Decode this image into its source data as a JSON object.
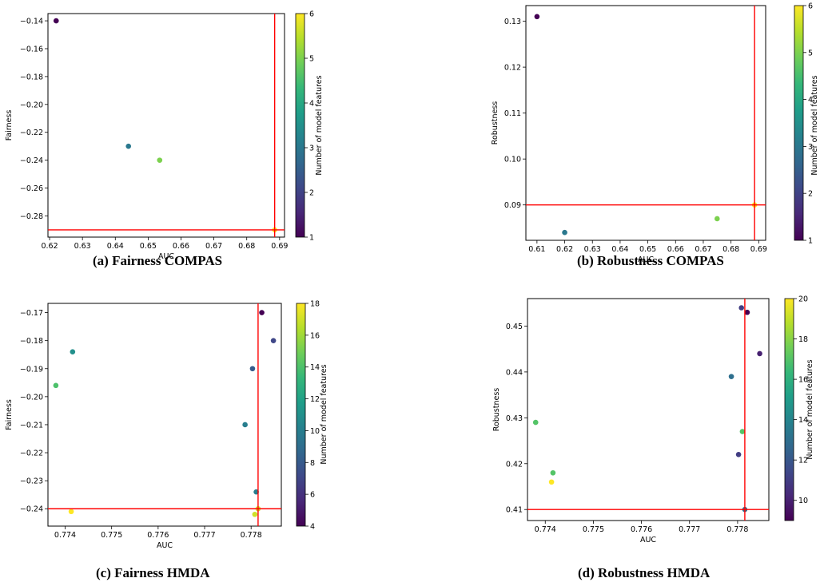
{
  "captions": [
    "(a) Fairness COMPAS",
    "(b) Robustness COMPAS",
    "(c) Fairness HMDA",
    "(d) Robustness HMDA"
  ],
  "colormap": "viridis",
  "threshold_color": "#ff0000",
  "chart_data": [
    {
      "type": "scatter",
      "title": "",
      "xlabel": "AUC",
      "ylabel": "Fairness",
      "colorbar_label": "Number of model features",
      "xlim": [
        0.6195,
        0.6915
      ],
      "ylim": [
        -0.2952,
        -0.1348
      ],
      "xticks": [
        0.62,
        0.63,
        0.64,
        0.65,
        0.66,
        0.67,
        0.68,
        0.69
      ],
      "xtick_labels": [
        "0.62",
        "0.63",
        "0.64",
        "0.65",
        "0.66",
        "0.67",
        "0.68",
        "0.69"
      ],
      "yticks": [
        -0.14,
        -0.16,
        -0.18,
        -0.2,
        -0.22,
        -0.24,
        -0.26,
        -0.28
      ],
      "ytick_labels": [
        "−0.14",
        "−0.16",
        "−0.18",
        "−0.20",
        "−0.22",
        "−0.24",
        "−0.26",
        "−0.28"
      ],
      "clim": [
        1,
        6
      ],
      "cticks": [
        1,
        2,
        3,
        4,
        5,
        6
      ],
      "points": [
        {
          "x": 0.622,
          "y": -0.14,
          "c": 1
        },
        {
          "x": 0.644,
          "y": -0.23,
          "c": 3
        },
        {
          "x": 0.6535,
          "y": -0.24,
          "c": 5
        },
        {
          "x": 0.6885,
          "y": -0.29,
          "c": 6
        }
      ],
      "vline": 0.6885,
      "hline": -0.29,
      "grid": false
    },
    {
      "type": "scatter",
      "title": "",
      "xlabel": "AUC",
      "ylabel": "Robustness",
      "colorbar_label": "Number of model features",
      "xlim": [
        0.606,
        0.6925
      ],
      "ylim": [
        0.0823,
        0.1334
      ],
      "xticks": [
        0.61,
        0.62,
        0.63,
        0.64,
        0.65,
        0.66,
        0.67,
        0.68,
        0.69
      ],
      "xtick_labels": [
        "0.61",
        "0.62",
        "0.63",
        "0.64",
        "0.65",
        "0.66",
        "0.67",
        "0.68",
        "0.69"
      ],
      "yticks": [
        0.13,
        0.12,
        0.11,
        0.1,
        0.09
      ],
      "ytick_labels": [
        "0.13",
        "0.12",
        "0.11",
        "0.10",
        "0.09"
      ],
      "clim": [
        1,
        6
      ],
      "cticks": [
        1,
        2,
        3,
        4,
        5,
        6
      ],
      "points": [
        {
          "x": 0.61,
          "y": 0.131,
          "c": 1
        },
        {
          "x": 0.62,
          "y": 0.084,
          "c": 3
        },
        {
          "x": 0.675,
          "y": 0.087,
          "c": 5
        },
        {
          "x": 0.6885,
          "y": 0.09,
          "c": 6
        }
      ],
      "vline": 0.6885,
      "hline": 0.09,
      "grid": false
    },
    {
      "type": "scatter",
      "title": "",
      "xlabel": "AUC",
      "ylabel": "Fairness",
      "colorbar_label": "Number of model features",
      "xlim": [
        0.77363,
        0.77865
      ],
      "ylim": [
        -0.2462,
        -0.1667
      ],
      "xticks": [
        0.774,
        0.775,
        0.776,
        0.777,
        0.778
      ],
      "xtick_labels": [
        "0.774",
        "0.775",
        "0.776",
        "0.777",
        "0.778"
      ],
      "yticks": [
        -0.17,
        -0.18,
        -0.19,
        -0.2,
        -0.21,
        -0.22,
        -0.23,
        -0.24
      ],
      "ytick_labels": [
        "−0.17",
        "−0.18",
        "−0.19",
        "−0.20",
        "−0.21",
        "−0.22",
        "−0.23",
        "−0.24"
      ],
      "clim": [
        4,
        18
      ],
      "cticks": [
        4,
        6,
        8,
        10,
        12,
        14,
        16,
        18
      ],
      "points": [
        {
          "x": 0.77823,
          "y": -0.17,
          "c": 4
        },
        {
          "x": 0.77848,
          "y": -0.18,
          "c": 7
        },
        {
          "x": 0.77803,
          "y": -0.19,
          "c": 8
        },
        {
          "x": 0.77416,
          "y": -0.184,
          "c": 11
        },
        {
          "x": 0.7738,
          "y": -0.196,
          "c": 14
        },
        {
          "x": 0.77787,
          "y": -0.21,
          "c": 10
        },
        {
          "x": 0.77811,
          "y": -0.234,
          "c": 10
        },
        {
          "x": 0.77815,
          "y": -0.24,
          "c": 17
        },
        {
          "x": 0.77808,
          "y": -0.242,
          "c": 17
        },
        {
          "x": 0.77413,
          "y": -0.241,
          "c": 18
        }
      ],
      "vline": 0.77815,
      "hline": -0.24,
      "grid": false
    },
    {
      "type": "scatter",
      "title": "",
      "xlabel": "AUC",
      "ylabel": "Robustness",
      "colorbar_label": "Number of model features",
      "xlim": [
        0.77363,
        0.77865
      ],
      "ylim": [
        0.4076,
        0.456
      ],
      "xticks": [
        0.774,
        0.775,
        0.776,
        0.777,
        0.778
      ],
      "xtick_labels": [
        "0.774",
        "0.775",
        "0.776",
        "0.777",
        "0.778"
      ],
      "yticks": [
        0.45,
        0.44,
        0.43,
        0.42,
        0.41
      ],
      "ytick_labels": [
        "0.45",
        "0.44",
        "0.43",
        "0.42",
        "0.41"
      ],
      "clim": [
        9,
        20
      ],
      "cticks": [
        10,
        12,
        14,
        16,
        18,
        20
      ],
      "points": [
        {
          "x": 0.77808,
          "y": 0.454,
          "c": 11
        },
        {
          "x": 0.7782,
          "y": 0.453,
          "c": 9
        },
        {
          "x": 0.77846,
          "y": 0.444,
          "c": 10
        },
        {
          "x": 0.77787,
          "y": 0.439,
          "c": 13
        },
        {
          "x": 0.7738,
          "y": 0.429,
          "c": 17
        },
        {
          "x": 0.7781,
          "y": 0.427,
          "c": 17
        },
        {
          "x": 0.77802,
          "y": 0.422,
          "c": 11
        },
        {
          "x": 0.77416,
          "y": 0.418,
          "c": 17
        },
        {
          "x": 0.77413,
          "y": 0.416,
          "c": 20
        },
        {
          "x": 0.77815,
          "y": 0.41,
          "c": 13
        }
      ],
      "vline": 0.77815,
      "hline": 0.41,
      "grid": false
    }
  ]
}
